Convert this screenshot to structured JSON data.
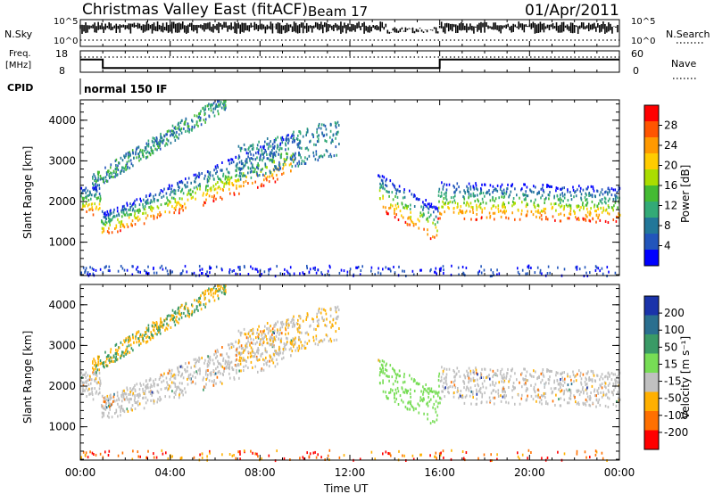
{
  "header": {
    "title": "Christmas Valley East (fitACF)",
    "beam": "Beam 17",
    "date": "01/Apr/2011"
  },
  "chart_data": [
    {
      "type": "line",
      "name": "nsky-nsearch",
      "labels": {
        "left": "N.Sky",
        "right": "N.Search"
      },
      "left_ticks": [
        "10^5",
        "10^0"
      ],
      "right_ticks": [
        "10^5",
        "10^0"
      ]
    },
    {
      "type": "line",
      "name": "freq-nave",
      "labels": {
        "left": "Freq.",
        "left2": "[MHz]",
        "right": "Nave"
      },
      "left_ticks": [
        "18",
        "8"
      ],
      "right_ticks": [
        "60",
        "0"
      ],
      "freq_segments": [
        {
          "x": [
            0.0,
            1.0
          ],
          "freq_mhz": 15.5
        },
        {
          "x": [
            1.0,
            16.0
          ],
          "freq_mhz": 10.5
        },
        {
          "x": [
            16.0,
            24.0
          ],
          "freq_mhz": 15.5
        }
      ]
    },
    {
      "type": "table",
      "name": "cpid",
      "label": "CPID",
      "value": "normal 150 IF"
    },
    {
      "type": "heatmap",
      "name": "power",
      "ylabel": "Slant Range [km]",
      "yticks": [
        "4000",
        "3000",
        "2000",
        "1000"
      ],
      "ylim": [
        180,
        4500
      ],
      "xlim": [
        0,
        24
      ],
      "colorbar": {
        "label": "Power [dB]",
        "ticks": [
          "28",
          "24",
          "20",
          "16",
          "12",
          "8",
          "4"
        ],
        "colors": [
          "#ff0000",
          "#ff5500",
          "#ff9900",
          "#ffcc00",
          "#aadd00",
          "#44bb33",
          "#33aa77",
          "#227799",
          "#2255bb",
          "#0000ff"
        ]
      }
    },
    {
      "type": "heatmap",
      "name": "velocity",
      "ylabel": "Slant Range [km]",
      "yticks": [
        "4000",
        "3000",
        "2000",
        "1000"
      ],
      "ylim": [
        180,
        4500
      ],
      "xlim": [
        0,
        24
      ],
      "colorbar": {
        "label": "Velocity [m s⁻¹]",
        "ticks": [
          "200",
          "100",
          "50",
          "15",
          "-15",
          "-50",
          "-100",
          "-200"
        ],
        "colors": [
          "#1a33aa",
          "#2a6f8f",
          "#3a9a66",
          "#77dd55",
          "#c0c0c0",
          "#ffb000",
          "#ff7000",
          "#ff0000"
        ]
      }
    }
  ],
  "x_axis": {
    "label": "Time UT",
    "ticks": [
      "00:00",
      "04:00",
      "08:00",
      "12:00",
      "16:00",
      "20:00",
      "00:00"
    ]
  }
}
